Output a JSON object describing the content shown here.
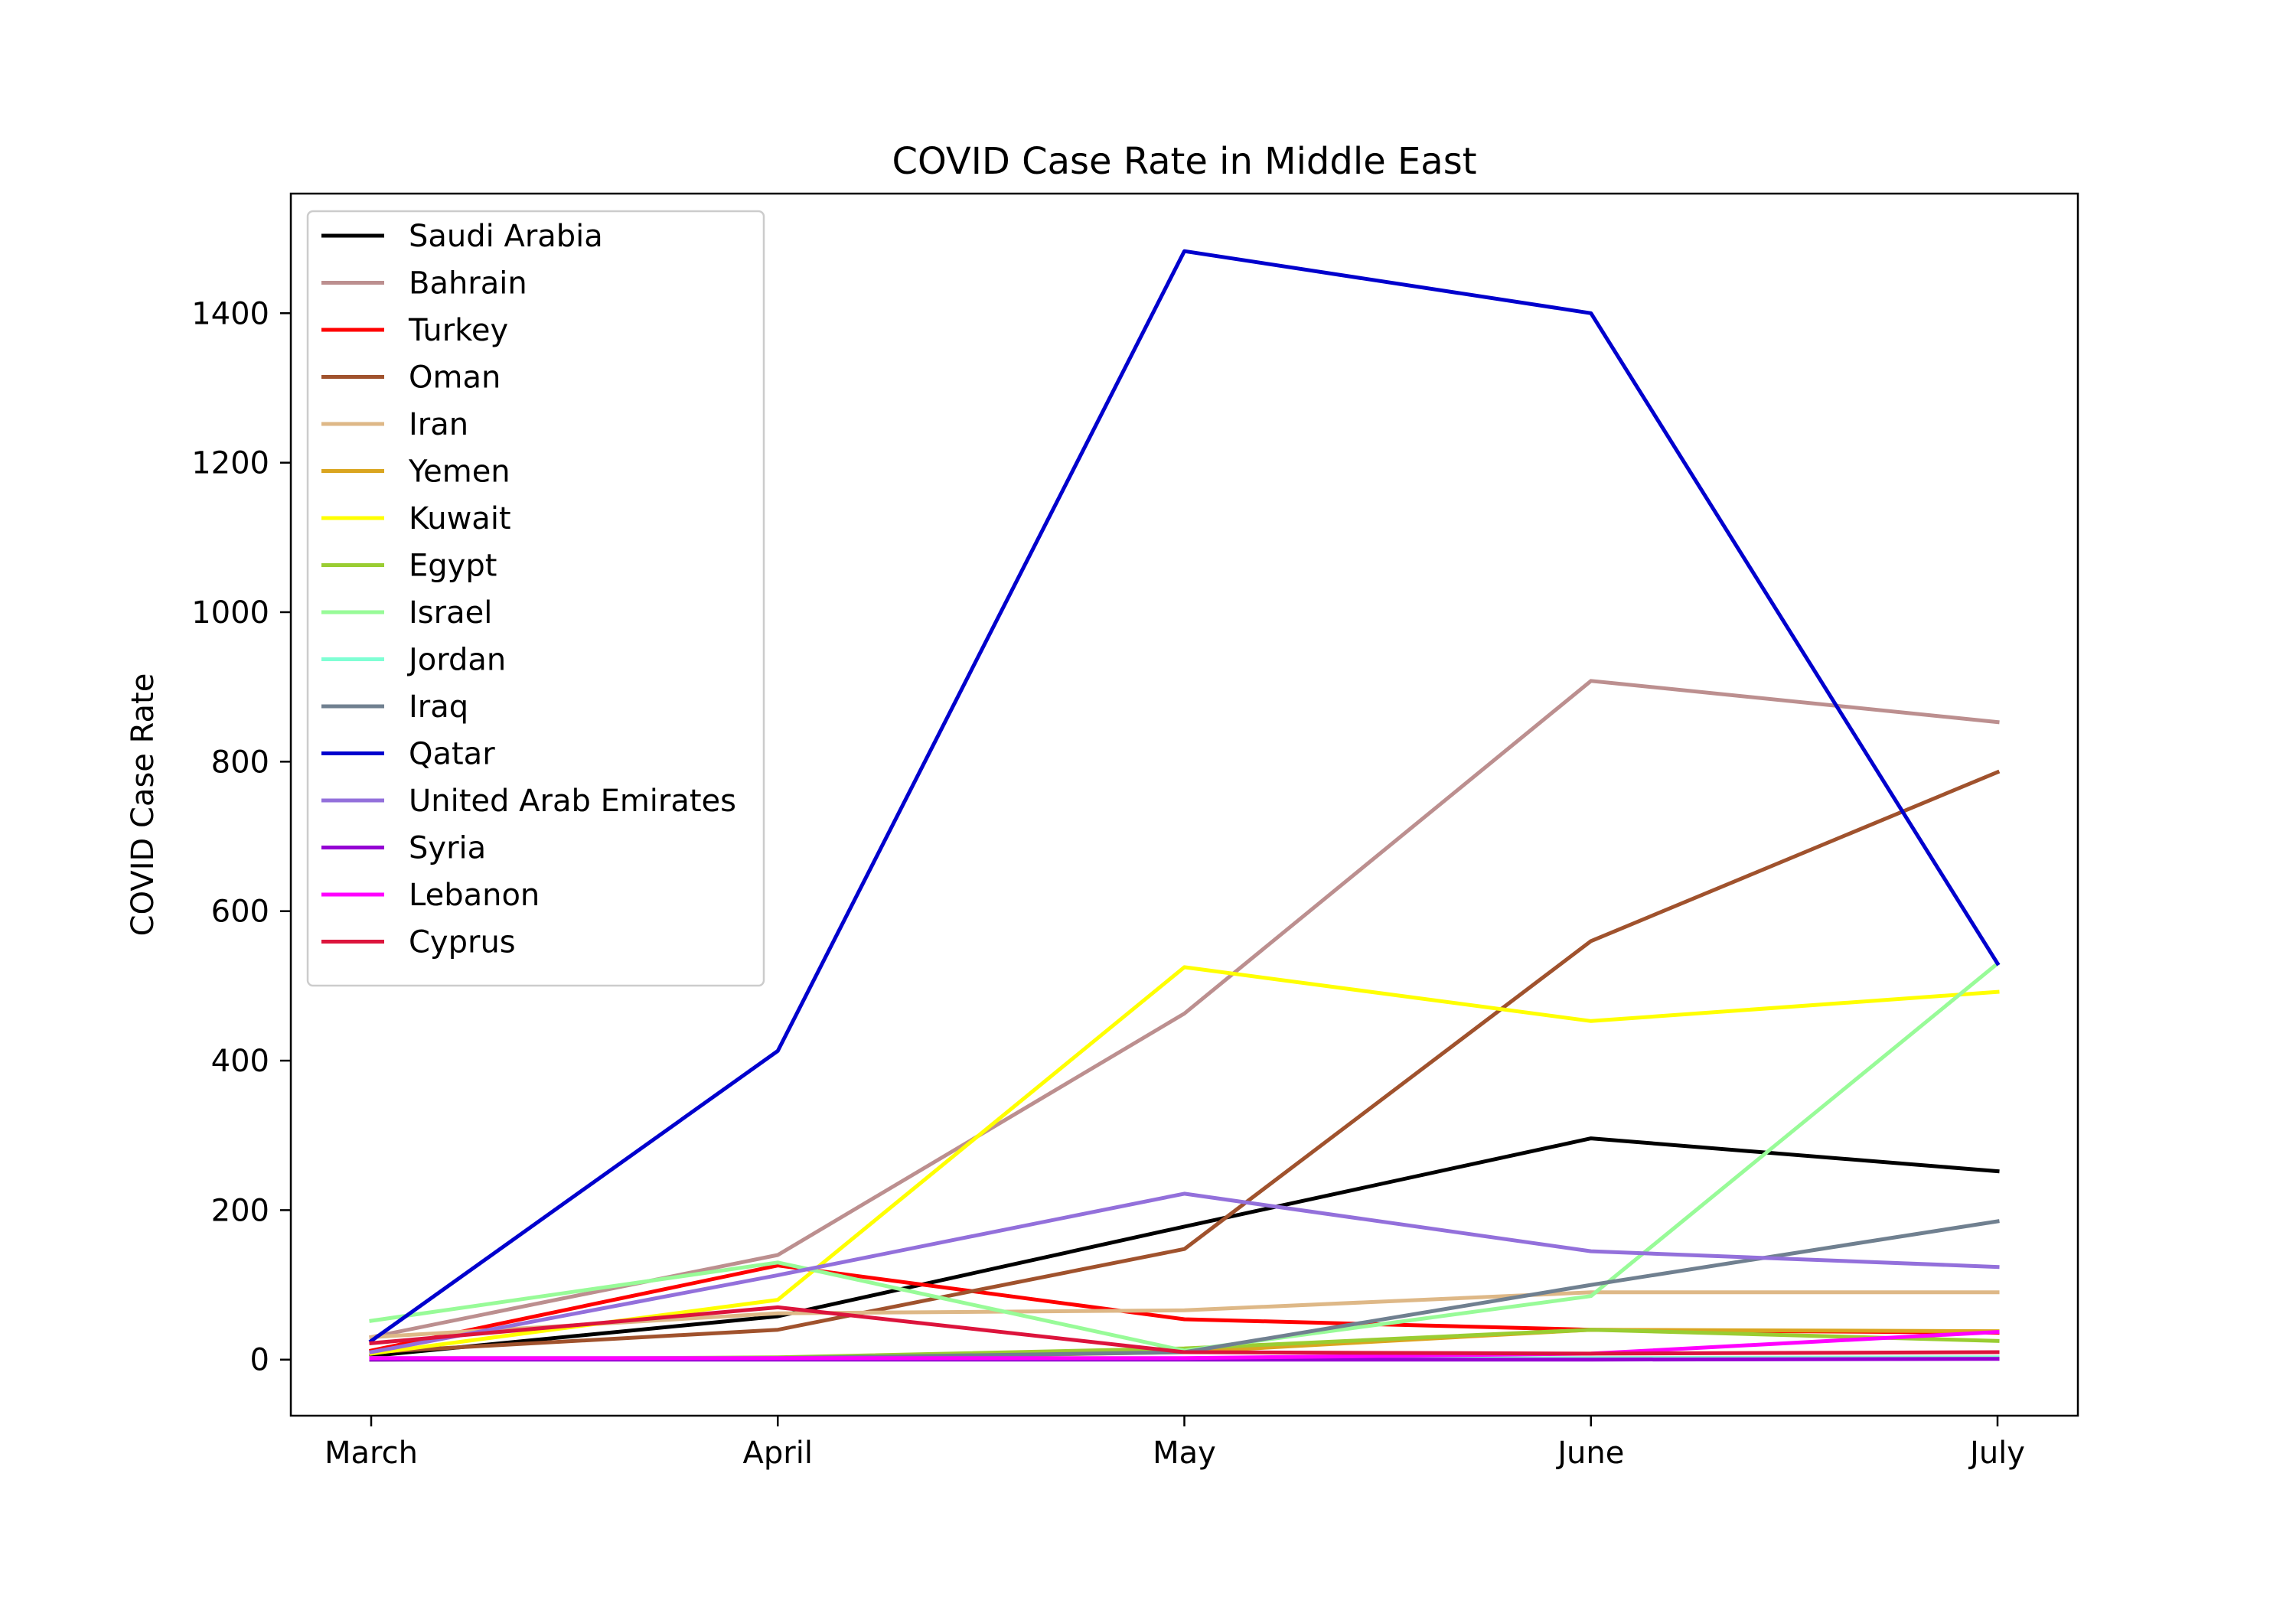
{
  "chart_data": {
    "type": "line",
    "title": "COVID Case Rate in Middle East",
    "xlabel": "",
    "ylabel": "COVID Case Rate",
    "categories": [
      "March",
      "April",
      "May",
      "June",
      "July"
    ],
    "ylim": [
      -75,
      1560
    ],
    "yticks": [
      0,
      200,
      400,
      600,
      800,
      1000,
      1200,
      1400
    ],
    "grid": false,
    "legend_position": "upper-left",
    "series": [
      {
        "name": "Saudi Arabia",
        "color": "#000000",
        "values": [
          5,
          58,
          178,
          296,
          252
        ]
      },
      {
        "name": "Bahrain",
        "color": "#bc8f8f",
        "values": [
          30,
          140,
          463,
          908,
          853
        ]
      },
      {
        "name": "Turkey",
        "color": "#ff0000",
        "values": [
          12,
          126,
          54,
          40,
          36
        ]
      },
      {
        "name": "Oman",
        "color": "#a0522d",
        "values": [
          10,
          40,
          148,
          560,
          786
        ]
      },
      {
        "name": "Iran",
        "color": "#deb887",
        "values": [
          30,
          62,
          66,
          90,
          90
        ]
      },
      {
        "name": "Yemen",
        "color": "#daa520",
        "values": [
          0,
          1,
          10,
          40,
          38
        ]
      },
      {
        "name": "Kuwait",
        "color": "#ffff00",
        "values": [
          8,
          80,
          525,
          453,
          492
        ]
      },
      {
        "name": "Egypt",
        "color": "#9acd32",
        "values": [
          0,
          3,
          15,
          40,
          25
        ]
      },
      {
        "name": "Israel",
        "color": "#98fb98",
        "values": [
          52,
          130,
          12,
          85,
          530
        ]
      },
      {
        "name": "Jordan",
        "color": "#7fffd4",
        "values": [
          2,
          2,
          1,
          2,
          3
        ]
      },
      {
        "name": "Iraq",
        "color": "#708090",
        "values": [
          0,
          2,
          10,
          100,
          185
        ]
      },
      {
        "name": "Qatar",
        "color": "#0000cd",
        "values": [
          25,
          413,
          1483,
          1400,
          530
        ]
      },
      {
        "name": "United Arab Emirates",
        "color": "#9370db",
        "values": [
          10,
          113,
          222,
          145,
          124
        ]
      },
      {
        "name": "Syria",
        "color": "#9400d3",
        "values": [
          0,
          0,
          0,
          0,
          1
        ]
      },
      {
        "name": "Lebanon",
        "color": "#ff00ff",
        "values": [
          2,
          2,
          2,
          8,
          37
        ]
      },
      {
        "name": "Cyprus",
        "color": "#dc143c",
        "values": [
          22,
          70,
          10,
          8,
          10
        ]
      }
    ]
  }
}
